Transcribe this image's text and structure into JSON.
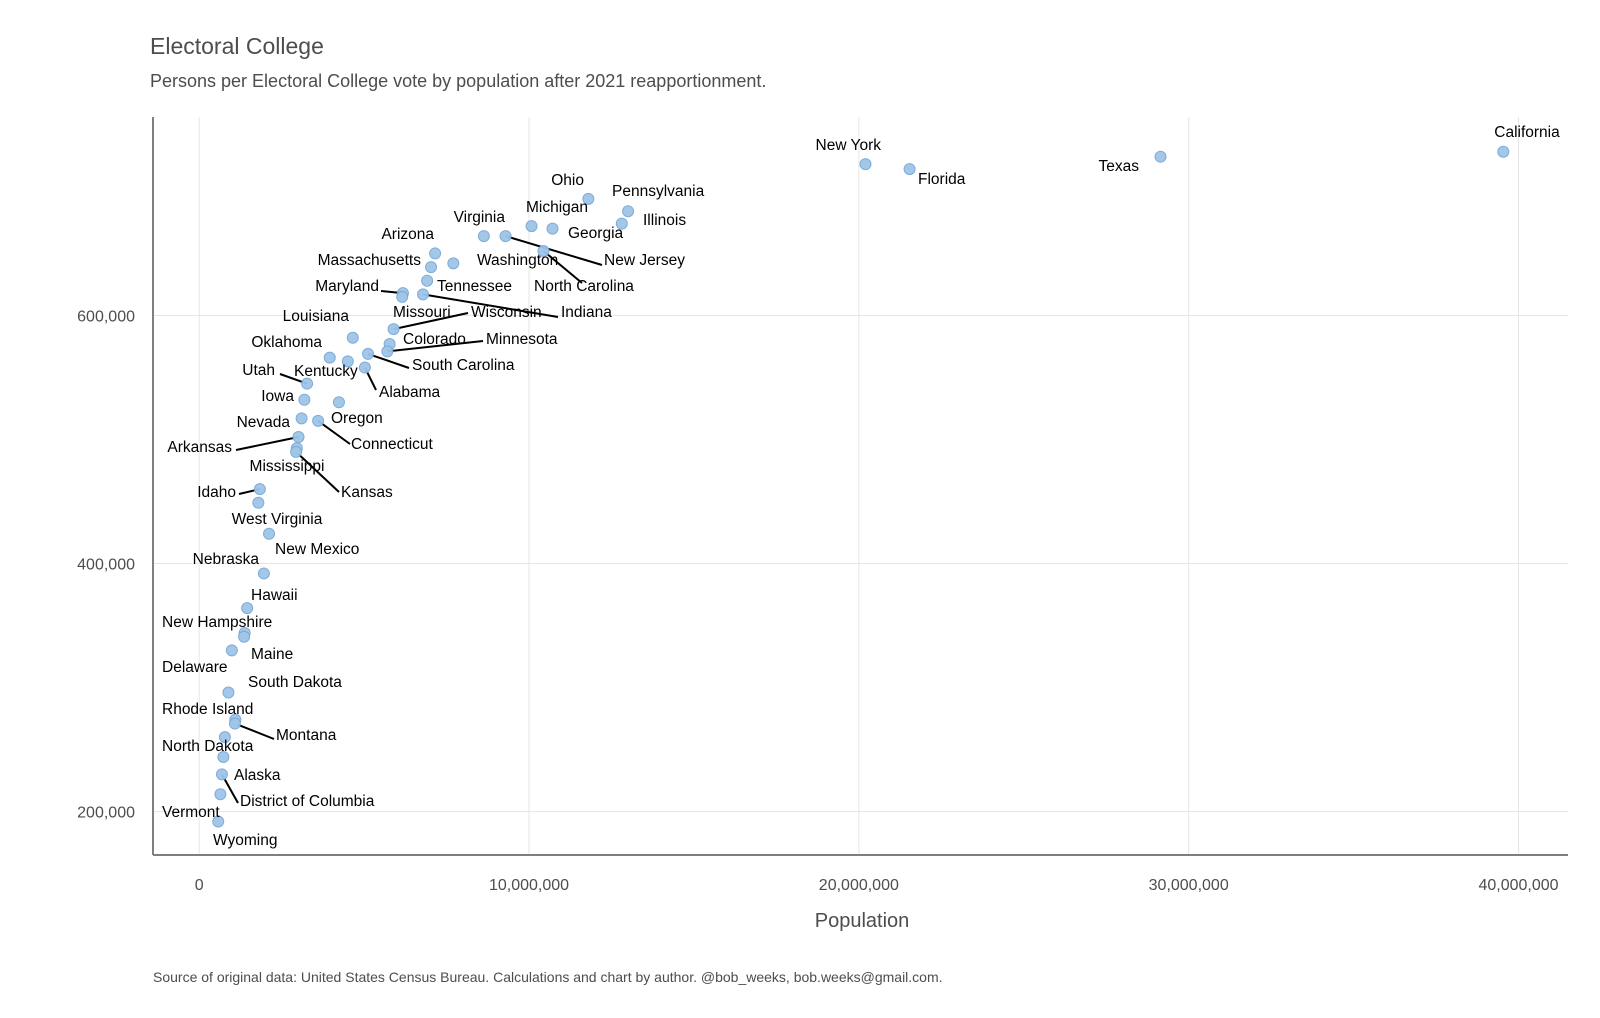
{
  "chart_data": {
    "type": "scatter",
    "title": "Electoral College",
    "subtitle": "Persons per Electoral College vote by population after 2021 reapportionment.",
    "caption": "Source of original data: United States Census Bureau. Calculations and chart by author. @bob_weeks, bob.weeks@gmail.com.",
    "xlabel": "Population",
    "ylabel": "",
    "xlim": [
      -1400000,
      41500000
    ],
    "ylim": [
      165000,
      760000
    ],
    "x_ticks": [
      0,
      10000000,
      20000000,
      30000000,
      40000000
    ],
    "x_tick_labels": [
      "0",
      "10,000,000",
      "20,000,000",
      "30,000,000",
      "40,000,000"
    ],
    "y_ticks": [
      200000,
      400000,
      600000
    ],
    "y_tick_labels": [
      "200,000",
      "400,000",
      "600,000"
    ],
    "grid": true,
    "point_color": "#9fc5e8",
    "points": [
      {
        "label": "California",
        "x": 39538000,
        "y": 732000
      },
      {
        "label": "Texas",
        "x": 29146000,
        "y": 728000
      },
      {
        "label": "Florida",
        "x": 21538000,
        "y": 718000
      },
      {
        "label": "New York",
        "x": 20201000,
        "y": 722000
      },
      {
        "label": "Pennsylvania",
        "x": 13003000,
        "y": 684000
      },
      {
        "label": "Illinois",
        "x": 12813000,
        "y": 674000
      },
      {
        "label": "Ohio",
        "x": 11799000,
        "y": 694000
      },
      {
        "label": "Georgia",
        "x": 10712000,
        "y": 670000
      },
      {
        "label": "North Carolina",
        "x": 10439000,
        "y": 652000
      },
      {
        "label": "Michigan",
        "x": 10077000,
        "y": 672000
      },
      {
        "label": "New Jersey",
        "x": 9289000,
        "y": 664000
      },
      {
        "label": "Virginia",
        "x": 8631000,
        "y": 664000
      },
      {
        "label": "Washington",
        "x": 7705000,
        "y": 642000
      },
      {
        "label": "Arizona",
        "x": 7152000,
        "y": 650000
      },
      {
        "label": "Massachusetts",
        "x": 7030000,
        "y": 639000
      },
      {
        "label": "Tennessee",
        "x": 6911000,
        "y": 628000
      },
      {
        "label": "Indiana",
        "x": 6786000,
        "y": 617000
      },
      {
        "label": "Maryland",
        "x": 6177000,
        "y": 618000
      },
      {
        "label": "Missouri",
        "x": 6155000,
        "y": 615000
      },
      {
        "label": "Wisconsin",
        "x": 5894000,
        "y": 589000
      },
      {
        "label": "Colorado",
        "x": 5774000,
        "y": 577000
      },
      {
        "label": "Minnesota",
        "x": 5706000,
        "y": 571000
      },
      {
        "label": "South Carolina",
        "x": 5119000,
        "y": 569000
      },
      {
        "label": "Alabama",
        "x": 5024000,
        "y": 558000
      },
      {
        "label": "Louisiana",
        "x": 4658000,
        "y": 582000
      },
      {
        "label": "Kentucky",
        "x": 4506000,
        "y": 563000
      },
      {
        "label": "Oregon",
        "x": 4237000,
        "y": 530000
      },
      {
        "label": "Oklahoma",
        "x": 3959000,
        "y": 566000
      },
      {
        "label": "Connecticut",
        "x": 3606000,
        "y": 515000
      },
      {
        "label": "Utah",
        "x": 3272000,
        "y": 545000
      },
      {
        "label": "Iowa",
        "x": 3190000,
        "y": 532000
      },
      {
        "label": "Nevada",
        "x": 3105000,
        "y": 517000
      },
      {
        "label": "Arkansas",
        "x": 3012000,
        "y": 502000
      },
      {
        "label": "Mississippi",
        "x": 2961000,
        "y": 493000
      },
      {
        "label": "Kansas",
        "x": 2938000,
        "y": 490000
      },
      {
        "label": "New Mexico",
        "x": 2118000,
        "y": 424000
      },
      {
        "label": "Nebraska",
        "x": 1962000,
        "y": 392000
      },
      {
        "label": "Idaho",
        "x": 1839000,
        "y": 460000
      },
      {
        "label": "West Virginia",
        "x": 1794000,
        "y": 449000
      },
      {
        "label": "Hawaii",
        "x": 1455000,
        "y": 364000
      },
      {
        "label": "New Hampshire",
        "x": 1378000,
        "y": 344000
      },
      {
        "label": "Maine",
        "x": 1362000,
        "y": 341000
      },
      {
        "label": "Rhode Island",
        "x": 1097000,
        "y": 274000
      },
      {
        "label": "Montana",
        "x": 1084000,
        "y": 271000
      },
      {
        "label": "Delaware",
        "x": 990000,
        "y": 330000
      },
      {
        "label": "South Dakota",
        "x": 887000,
        "y": 296000
      },
      {
        "label": "North Dakota",
        "x": 779000,
        "y": 260000
      },
      {
        "label": "Alaska",
        "x": 733000,
        "y": 244000
      },
      {
        "label": "District of Columbia",
        "x": 690000,
        "y": 230000
      },
      {
        "label": "Vermont",
        "x": 643000,
        "y": 214000
      },
      {
        "label": "Wyoming",
        "x": 577000,
        "y": 192000
      }
    ]
  }
}
